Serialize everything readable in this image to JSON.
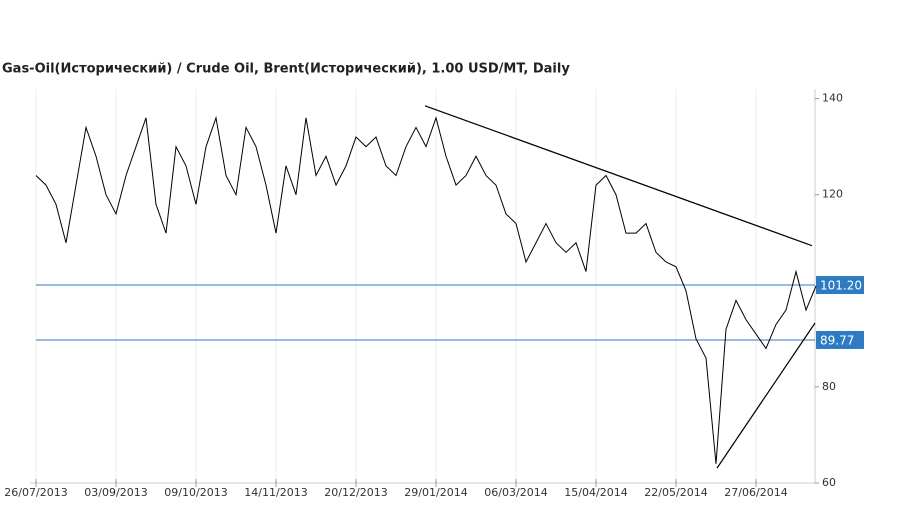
{
  "chart_data": {
    "type": "line",
    "title": "Gas-Oil(Исторический) / Crude Oil, Brent(Исторический), 1.00 USD/MT, Daily",
    "categories": [
      "26/07/2013",
      null,
      null,
      null,
      null,
      null,
      null,
      null,
      "03/09/2013",
      null,
      null,
      null,
      null,
      null,
      null,
      null,
      "09/10/2013",
      null,
      null,
      null,
      null,
      null,
      null,
      null,
      "14/11/2013",
      null,
      null,
      null,
      null,
      null,
      null,
      null,
      "20/12/2013",
      null,
      null,
      null,
      null,
      null,
      null,
      null,
      "29/01/2014",
      null,
      null,
      null,
      null,
      null,
      null,
      null,
      "06/03/2014",
      null,
      null,
      null,
      null,
      null,
      null,
      null,
      "15/04/2014",
      null,
      null,
      null,
      null,
      null,
      null,
      null,
      "22/05/2014",
      null,
      null,
      null,
      null,
      null,
      null,
      null,
      "27/06/2014",
      null,
      null,
      null,
      null,
      null,
      null
    ],
    "series": [
      {
        "color": "#000000",
        "values": [
          124,
          122,
          118,
          110,
          122,
          134,
          128,
          120,
          116,
          124,
          130,
          136,
          118,
          112,
          130,
          126,
          118,
          130,
          136,
          124,
          120,
          134,
          130,
          122,
          112,
          126,
          120,
          136,
          124,
          128,
          122,
          126,
          132,
          130,
          132,
          126,
          124,
          130,
          134,
          130,
          136,
          128,
          122,
          124,
          128,
          124,
          122,
          116,
          114,
          106,
          110,
          114,
          110,
          108,
          110,
          104,
          122,
          124,
          120,
          112,
          112,
          114,
          108,
          106,
          105,
          100,
          90,
          86,
          64,
          92,
          98,
          94,
          91,
          88,
          93,
          96,
          104,
          96,
          101
        ]
      }
    ],
    "ylim": [
      60,
      142
    ],
    "yticks": [
      60,
      80,
      120,
      140
    ],
    "hlines": [
      {
        "value": 101.2,
        "label": "101.20",
        "color": "#2e7bc4"
      },
      {
        "value": 89.77,
        "label": "89.77",
        "color": "#2e7bc4"
      }
    ],
    "trendlines": [
      {
        "from": [
          38.9,
          138.5
        ],
        "to": [
          77.6,
          109.4
        ]
      },
      {
        "from": [
          68.1,
          63.1
        ],
        "to": [
          77.9,
          93.3
        ]
      }
    ],
    "grid": true
  }
}
